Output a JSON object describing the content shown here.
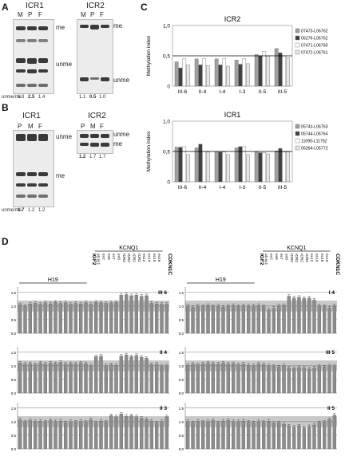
{
  "panels": {
    "A": {
      "label": "A",
      "gel1": {
        "title": "ICR1",
        "lanes": [
          "M",
          "P",
          "F"
        ],
        "labels": [
          "me",
          "unme"
        ],
        "ratio_label": "unme/me",
        "ratios": [
          "1.3",
          "2.5",
          "1.4"
        ]
      },
      "gel2": {
        "title": "ICR2",
        "lanes": [
          "M",
          "P",
          "F"
        ],
        "labels": [
          "me",
          "unme"
        ],
        "ratios": [
          "1.1",
          "0.5",
          "1.0"
        ]
      }
    },
    "B": {
      "label": "B",
      "gel1": {
        "title": "ICR1",
        "lanes": [
          "P",
          "M",
          "F"
        ],
        "labels": [
          "unme",
          "me"
        ],
        "ratio_label": "unme/me",
        "ratios": [
          "1.7",
          "1.2",
          "1.2"
        ]
      },
      "gel2": {
        "title": "ICR2",
        "lanes": [
          "P",
          "M",
          "F"
        ],
        "labels": [
          "unme",
          "me"
        ],
        "ratios": [
          "1.2",
          "1.7",
          "1.7"
        ]
      }
    },
    "C": {
      "label": "C"
    },
    "D": {
      "label": "D"
    }
  },
  "chart_data": [
    {
      "id": "icr2",
      "type": "bar",
      "title": "ICR2",
      "ylabel": "Methylation index",
      "ylim": [
        0,
        1
      ],
      "yticks": [
        "0",
        "0,5",
        "1,0"
      ],
      "categories": [
        "III-6",
        "II-4",
        "I-4",
        "I-3",
        "II-5",
        "III-5"
      ],
      "series": [
        {
          "name": "07473-L06762",
          "color": "#a0a0a0",
          "values": [
            0.4,
            0.45,
            0.45,
            0.43,
            0.52,
            0.62
          ]
        },
        {
          "name": "05276-L06762",
          "color": "#404040",
          "values": [
            0.3,
            0.35,
            0.35,
            0.36,
            0.5,
            0.55
          ]
        },
        {
          "name": "07471-L06760",
          "color": "#ffffff",
          "values": [
            0.45,
            0.45,
            0.45,
            0.45,
            0.57,
            0.5
          ]
        },
        {
          "name": "07472-L06761",
          "color": "#e6e6e6",
          "values": [
            0.35,
            0.34,
            0.33,
            0.37,
            0.5,
            0.47
          ]
        }
      ],
      "reference_line": 0.5
    },
    {
      "id": "icr1",
      "type": "bar",
      "title": "ICR1",
      "ylabel": "Methylation index",
      "ylim": [
        0,
        1
      ],
      "yticks": [
        "0",
        "0,5",
        "1,0"
      ],
      "categories": [
        "III-6",
        "II-4",
        "I-4",
        "I-3",
        "II-5",
        "III-5"
      ],
      "series": [
        {
          "name": "05743-L06763",
          "color": "#a0a0a0",
          "values": [
            0.57,
            0.56,
            0.5,
            0.56,
            0.5,
            0.51
          ]
        },
        {
          "name": "05744-L06764",
          "color": "#404040",
          "values": [
            0.57,
            0.62,
            0.49,
            0.58,
            0.48,
            0.55
          ]
        },
        {
          "name": "11090-L11762",
          "color": "#ffffff",
          "values": [
            0.58,
            0.5,
            0.49,
            0.58,
            0.48,
            0.49
          ]
        },
        {
          "name": "05264-L05772",
          "color": "#e6e6e6",
          "values": [
            0.45,
            0.49,
            0.45,
            0.45,
            0.46,
            0.49
          ]
        }
      ],
      "reference_line": 0.5
    },
    {
      "id": "panelD",
      "type": "bar",
      "yticks": [
        "0.0",
        "0.5",
        "1.0",
        "1.5"
      ],
      "ylim": [
        0,
        1.7
      ],
      "groups": [
        {
          "name": "H19",
          "count": 14
        },
        {
          "name": "IGF2",
          "count": 1
        },
        {
          "name": "KCNQ1",
          "count": 14
        },
        {
          "name": "CDKN1C",
          "count": 1
        }
      ],
      "kcnq1_labels": [
        "alt.ex1",
        "ex2",
        "ex6",
        "ex7",
        "ex8",
        "ICR2",
        "ICR2",
        "ICR2",
        "ICR2",
        "ex12",
        "ex14",
        "ex15",
        "ex16"
      ],
      "panels": [
        {
          "label": "III 6",
          "values": [
            1.05,
            0.98,
            1.08,
            1.1,
            1.06,
            1.12,
            1.08,
            1.14,
            1.1,
            1.12,
            1.06,
            1.1,
            1.08,
            1.12,
            1.06,
            1.14,
            1.12,
            1.1,
            1.12,
            1.14,
            1.4,
            1.42,
            1.38,
            1.4,
            1.36,
            1.38,
            1.1,
            1.08,
            1.06,
            1.06
          ]
        },
        {
          "label": "I 4",
          "values": [
            1.0,
            0.95,
            1.0,
            0.98,
            1.02,
            0.98,
            1.0,
            0.96,
            1.0,
            1.02,
            0.98,
            1.0,
            0.98,
            1.0,
            1.02,
            0.98,
            0.86,
            0.92,
            1.0,
            1.02,
            1.36,
            1.3,
            1.32,
            1.28,
            1.3,
            1.22,
            1.0,
            0.98,
            0.92,
            1.0
          ]
        },
        {
          "label": "II 4",
          "values": [
            1.1,
            1.06,
            1.08,
            1.04,
            1.1,
            1.06,
            1.1,
            1.08,
            1.12,
            1.06,
            1.08,
            1.06,
            1.1,
            1.08,
            1.0,
            1.34,
            1.36,
            1.0,
            1.04,
            1.02,
            1.36,
            1.4,
            1.34,
            1.38,
            1.32,
            1.28,
            1.04,
            1.06,
            0.98,
            1.0
          ]
        },
        {
          "label": "III 5",
          "values": [
            1.02,
            1.06,
            1.04,
            1.08,
            1.1,
            1.08,
            1.06,
            1.1,
            1.06,
            1.08,
            1.04,
            1.06,
            1.02,
            1.0,
            1.06,
            1.04,
            1.0,
            0.98,
            0.96,
            1.0,
            0.92,
            0.9,
            0.94,
            0.92,
            0.88,
            0.92,
            0.98,
            0.96,
            1.0,
            0.98
          ]
        },
        {
          "label": "II 3",
          "values": [
            1.06,
            0.98,
            1.04,
            1.0,
            1.02,
            0.98,
            1.04,
            1.0,
            1.02,
            0.96,
            1.0,
            0.98,
            1.02,
            0.98,
            1.06,
            0.96,
            1.02,
            0.98,
            1.22,
            1.18,
            1.28,
            1.2,
            1.22,
            1.18,
            1.12,
            1.08,
            1.02,
            0.96,
            1.0,
            1.18
          ]
        },
        {
          "label": "II 5",
          "values": [
            1.0,
            0.96,
            1.02,
            0.98,
            1.0,
            1.04,
            0.96,
            1.02,
            1.04,
            1.0,
            1.0,
            1.02,
            0.98,
            0.96,
            1.0,
            0.98,
            1.02,
            0.94,
            0.96,
            0.9,
            0.84,
            0.8,
            0.84,
            0.78,
            0.82,
            0.88,
            0.96,
            0.98,
            1.08,
            1.24
          ]
        }
      ]
    }
  ]
}
